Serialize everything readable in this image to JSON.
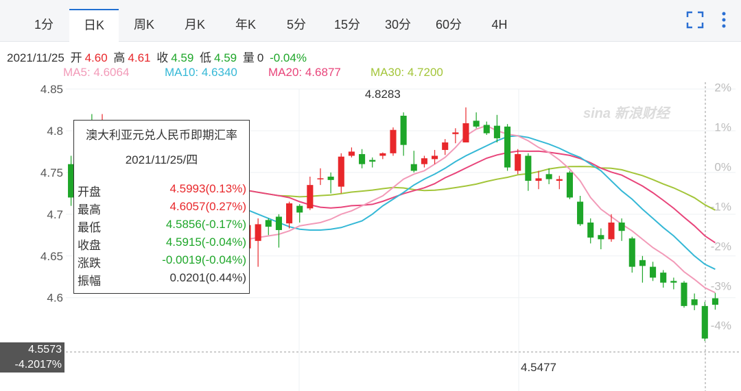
{
  "tabs": [
    "1分",
    "日K",
    "周K",
    "月K",
    "年K",
    "5分",
    "15分",
    "30分",
    "60分",
    "4H"
  ],
  "active_tab": "日K",
  "toolbar": {
    "fullscreen_icon": "fullscreen-icon",
    "more_icon": "more-vertical-icon"
  },
  "info": {
    "date": "2021/11/25",
    "open_label": "开",
    "open": "4.60",
    "high_label": "高",
    "high": "4.61",
    "close_label": "收",
    "close": "4.59",
    "low_label": "低",
    "low": "4.59",
    "vol_label": "量",
    "vol": "0",
    "change": "-0.04%"
  },
  "ma": {
    "ma5": "MA5: 4.6064",
    "ma10": "MA10: 4.6340",
    "ma20": "MA20: 4.6877",
    "ma30": "MA30: 4.7200"
  },
  "colors": {
    "up": "#e8272b",
    "down": "#1ea629",
    "ma5": "#f29ab8",
    "ma10": "#35b8d6",
    "ma20": "#e8447a",
    "ma30": "#a3c539",
    "accent": "#1f6fd1"
  },
  "watermark": "sina 新浪财经",
  "tooltip": {
    "title": "澳大利亚元兑人民币即期汇率",
    "date": "2021/11/25/四",
    "rows": [
      {
        "k": "开盘",
        "v": "4.5993(0.13%)",
        "c": "up"
      },
      {
        "k": "最高",
        "v": "4.6057(0.27%)",
        "c": "up"
      },
      {
        "k": "最低",
        "v": "4.5856(-0.17%)",
        "c": "down"
      },
      {
        "k": "收盘",
        "v": "4.5915(-0.04%)",
        "c": "down"
      },
      {
        "k": "涨跌",
        "v": "-0.0019(-0.04%)",
        "c": "down"
      },
      {
        "k": "振幅",
        "v": "0.0201(0.44%)",
        "c": "plain"
      }
    ]
  },
  "crosshair": {
    "price": "4.5573",
    "pct": "-4.2017%"
  },
  "chart_data": {
    "type": "candlestick",
    "y_ticks": [
      "4.85",
      "4.8",
      "4.75",
      "4.7",
      "4.65",
      "4.6"
    ],
    "y_ticks_values": [
      4.85,
      4.8,
      4.75,
      4.7,
      4.65,
      4.6
    ],
    "pct_ticks": [
      "2%",
      "1%",
      "0%",
      "-1%",
      "-2%",
      "-3%",
      "-4%"
    ],
    "pct_values": [
      2,
      1,
      0,
      -1,
      -2,
      -3,
      -4
    ],
    "ylim": [
      4.535,
      4.855
    ],
    "base_price": 4.757,
    "annotations": [
      {
        "text": "4.8283",
        "price": 4.8283,
        "index": 30
      },
      {
        "text": "4.5477",
        "price": 4.5477,
        "index": 45
      }
    ],
    "candles": [
      [
        4.76,
        4.72,
        4.77,
        4.71
      ],
      [
        4.8,
        4.76,
        4.81,
        4.75
      ],
      [
        4.81,
        4.8,
        4.82,
        4.79
      ],
      [
        4.8,
        4.81,
        4.82,
        4.79
      ],
      [
        4.79,
        4.8,
        4.81,
        4.78
      ],
      [
        4.78,
        4.76,
        4.79,
        4.75
      ],
      [
        4.76,
        4.75,
        4.77,
        4.74
      ],
      [
        4.75,
        4.74,
        4.76,
        4.73
      ],
      [
        4.74,
        4.75,
        4.76,
        4.73
      ],
      [
        4.73,
        4.74,
        4.75,
        4.72
      ],
      [
        4.72,
        4.7,
        4.73,
        4.69
      ],
      [
        4.7,
        4.71,
        4.72,
        4.69
      ],
      [
        4.7,
        4.69,
        4.71,
        4.68
      ],
      [
        4.7,
        4.68,
        4.71,
        4.67
      ],
      [
        4.69,
        4.7,
        4.71,
        4.68
      ],
      [
        4.7,
        4.67,
        4.71,
        4.66
      ],
      [
        4.66,
        4.644,
        4.685,
        4.642
      ],
      [
        4.659,
        4.687,
        4.7,
        4.655
      ],
      [
        4.668,
        4.688,
        4.695,
        4.637
      ],
      [
        4.693,
        4.685,
        4.695,
        4.675
      ],
      [
        4.697,
        4.681,
        4.7,
        4.66
      ],
      [
        4.689,
        4.713,
        4.715,
        4.683
      ],
      [
        4.71,
        4.702,
        4.712,
        4.69
      ],
      [
        4.707,
        4.735,
        4.745,
        4.705
      ],
      [
        4.743,
        4.743,
        4.755,
        4.735
      ],
      [
        4.745,
        4.741,
        4.75,
        4.725
      ],
      [
        4.733,
        4.769,
        4.773,
        4.725
      ],
      [
        4.77,
        4.775,
        4.78,
        4.768
      ],
      [
        4.772,
        4.76,
        4.778,
        4.755
      ],
      [
        4.765,
        4.763,
        4.768,
        4.756
      ],
      [
        4.77,
        4.773,
        4.774,
        4.766
      ],
      [
        4.773,
        4.801,
        4.804,
        4.77
      ],
      [
        4.818,
        4.783,
        4.822,
        4.77
      ],
      [
        4.76,
        4.752,
        4.776,
        4.75
      ],
      [
        4.76,
        4.767,
        4.77,
        4.756
      ],
      [
        4.766,
        4.77,
        4.777,
        4.76
      ],
      [
        4.777,
        4.786,
        4.79,
        4.771
      ],
      [
        4.796,
        4.798,
        4.803,
        4.785
      ],
      [
        4.786,
        4.809,
        4.828,
        4.786
      ],
      [
        4.812,
        4.805,
        4.822,
        4.803
      ],
      [
        4.807,
        4.797,
        4.811,
        4.795
      ],
      [
        4.806,
        4.791,
        4.819,
        4.786
      ],
      [
        4.805,
        4.756,
        4.808,
        4.752
      ],
      [
        4.752,
        4.772,
        4.778,
        4.748
      ],
      [
        4.77,
        4.74,
        4.773,
        4.728
      ],
      [
        4.74,
        4.743,
        4.752,
        4.73
      ],
      [
        4.748,
        4.742,
        4.755,
        4.736
      ],
      [
        4.74,
        4.742,
        4.746,
        4.73
      ],
      [
        4.75,
        4.72,
        4.752,
        4.718
      ],
      [
        4.715,
        4.688,
        4.722,
        4.686
      ],
      [
        4.69,
        4.672,
        4.695,
        4.665
      ],
      [
        4.675,
        4.67,
        4.683,
        4.658
      ],
      [
        4.67,
        4.69,
        4.7,
        4.667
      ],
      [
        4.69,
        4.68,
        4.695,
        4.668
      ],
      [
        4.671,
        4.637,
        4.673,
        4.63
      ],
      [
        4.645,
        4.638,
        4.65,
        4.618
      ],
      [
        4.637,
        4.624,
        4.643,
        4.62
      ],
      [
        4.63,
        4.618,
        4.633,
        4.612
      ],
      [
        4.62,
        4.618,
        4.624,
        4.61
      ],
      [
        4.618,
        4.59,
        4.62,
        4.588
      ],
      [
        4.598,
        4.591,
        4.605,
        4.585
      ],
      [
        4.59,
        4.551,
        4.595,
        4.548
      ],
      [
        4.5993,
        4.5915,
        4.6057,
        4.5856
      ]
    ],
    "ma5": [
      4.74,
      4.73,
      4.72,
      4.71,
      4.7,
      4.69,
      4.68,
      4.675,
      4.672,
      4.67,
      4.672,
      4.674,
      4.676,
      4.68,
      4.686,
      4.688,
      4.69,
      4.694,
      4.7,
      4.704,
      4.71,
      4.716,
      4.722,
      4.732,
      4.742,
      4.748,
      4.752,
      4.76,
      4.768,
      4.78,
      4.794,
      4.802,
      4.806,
      4.8,
      4.796,
      4.794,
      4.788,
      4.78,
      4.774,
      4.765,
      4.754,
      4.74,
      4.72,
      4.706,
      4.697,
      4.688,
      4.68,
      4.67,
      4.66,
      4.652,
      4.643,
      4.631,
      4.622,
      4.612,
      4.606
    ],
    "ma10": [
      4.72,
      4.715,
      4.71,
      4.705,
      4.7,
      4.695,
      4.69,
      4.685,
      4.682,
      4.681,
      4.681,
      4.682,
      4.684,
      4.688,
      4.692,
      4.7,
      4.71,
      4.718,
      4.726,
      4.735,
      4.742,
      4.748,
      4.755,
      4.763,
      4.77,
      4.776,
      4.782,
      4.788,
      4.793,
      4.794,
      4.792,
      4.788,
      4.784,
      4.779,
      4.773,
      4.768,
      4.76,
      4.752,
      4.74,
      4.728,
      4.718,
      4.706,
      4.695,
      4.684,
      4.674,
      4.662,
      4.65,
      4.64,
      4.634
    ]
  }
}
